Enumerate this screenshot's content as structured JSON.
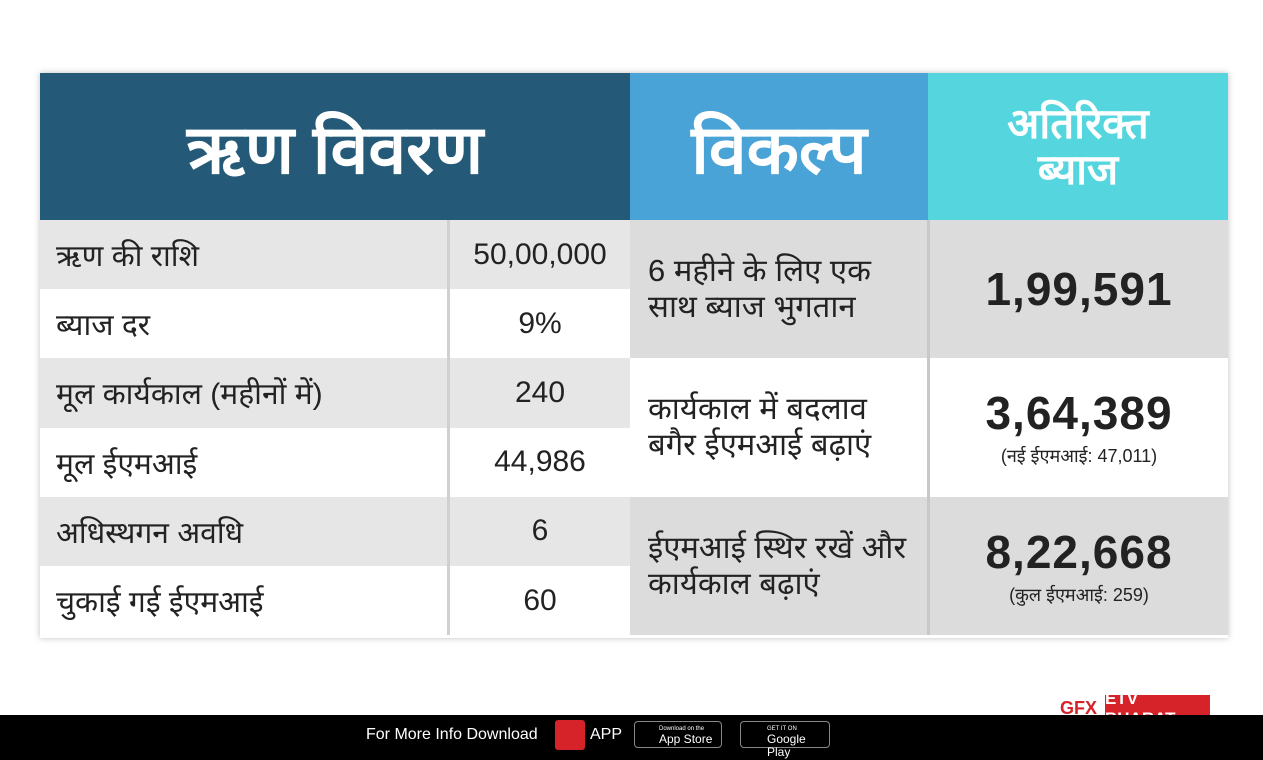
{
  "left_table": {
    "title": "ऋण विवरण",
    "rows": [
      [
        "ऋण की राशि",
        "50,00,000"
      ],
      [
        "ब्याज दर",
        "9%"
      ],
      [
        "मूल कार्यकाल (महीनों में)",
        "240"
      ],
      [
        "मूल ईएमआई",
        "44,986"
      ],
      [
        "अधिस्थगन अवधि",
        "6"
      ],
      [
        "चुकाई गई ईएमआई",
        "60"
      ]
    ]
  },
  "right_table": {
    "headers": [
      "विकल्प",
      "अतिरिक्त ब्याज"
    ],
    "rows": [
      {
        "option": "6 महीने के लिए एक साथ ब्याज भुगतान",
        "value": "1,99,591"
      },
      {
        "option": "कार्यकाल में बदलाव बगैर ईएमआई बढ़ाएं",
        "value": "3,64,389",
        "note": "(नई ईएमआई: 47,011)"
      },
      {
        "option": "ईएमआई स्थिर रखें और कार्यकाल बढ़ाएं",
        "value": "8,22,668",
        "note": "(कुल ईएमआई: 259)"
      }
    ]
  },
  "footer": {
    "text": "For More Info Download",
    "app": "APP",
    "app_store_small": "Download on the",
    "app_store": "App Store",
    "google_small": "GET IT ON",
    "google": "Google Play",
    "gfx": "GFX",
    "brand": "ETV BHARAT"
  }
}
